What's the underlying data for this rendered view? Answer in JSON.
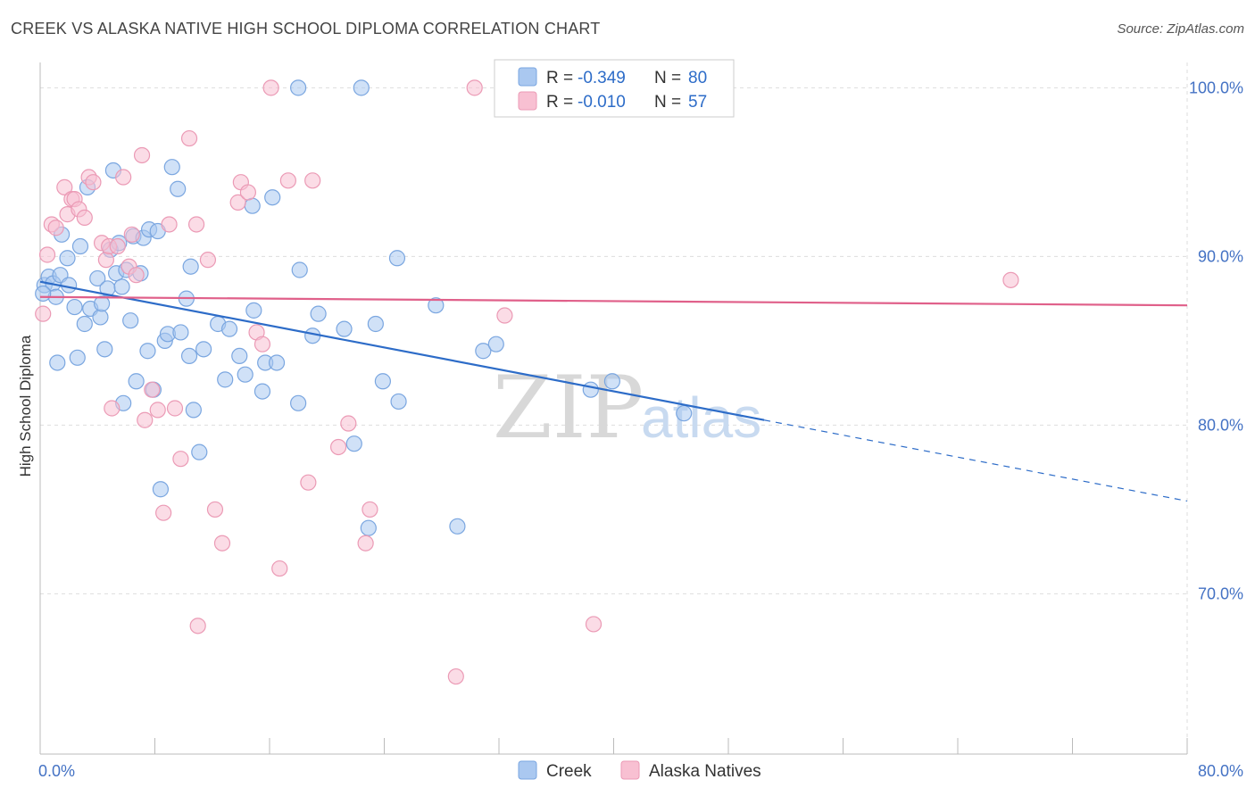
{
  "header": {
    "title": "CREEK VS ALASKA NATIVE HIGH SCHOOL DIPLOMA CORRELATION CHART",
    "source": "Source: ZipAtlas.com"
  },
  "watermark": {
    "zip": "ZIP",
    "atlas": "atlas"
  },
  "stats": {
    "r_label": "R =",
    "n_label": "N =",
    "rows": [
      {
        "series": "Creek",
        "r": "-0.349",
        "n": "80"
      },
      {
        "series": "Alaska Natives",
        "r": "-0.010",
        "n": "57"
      }
    ]
  },
  "colors": {
    "creek_fill": "#aac8f0",
    "creek_stroke": "#7aa6e0",
    "creek_line": "#2d6cc8",
    "alaska_fill": "#f8c0d2",
    "alaska_stroke": "#eb9ab5",
    "alaska_line": "#e0608a",
    "grid": "#dddddd"
  },
  "chart_data": {
    "type": "scatter",
    "title": "CREEK VS ALASKA NATIVE HIGH SCHOOL DIPLOMA CORRELATION CHART",
    "xlabel": "",
    "ylabel": "High School Diploma",
    "xlim": [
      0,
      80
    ],
    "ylim": [
      60.5,
      101.5
    ],
    "x_tick_labels": [
      {
        "value": 0,
        "label": "0.0%"
      },
      {
        "value": 80,
        "label": "80.0%"
      }
    ],
    "y_tick_labels": [
      {
        "value": 100,
        "label": "100.0%"
      },
      {
        "value": 90,
        "label": "90.0%"
      },
      {
        "value": 80,
        "label": "80.0%"
      },
      {
        "value": 70,
        "label": "70.0%"
      }
    ],
    "legend": [
      "Creek",
      "Alaska Natives"
    ],
    "series": [
      {
        "name": "Creek",
        "trend": {
          "start": [
            0,
            88.5
          ],
          "end": [
            50.5,
            80.3
          ],
          "dashed_end": [
            80,
            75.5
          ]
        },
        "points": [
          [
            0.3,
            88.3
          ],
          [
            0.6,
            88.8
          ],
          [
            0.9,
            88.4
          ],
          [
            1.1,
            87.6
          ],
          [
            1.4,
            88.9
          ],
          [
            1.5,
            91.3
          ],
          [
            1.9,
            89.9
          ],
          [
            2.0,
            88.3
          ],
          [
            2.4,
            87.0
          ],
          [
            2.6,
            84.0
          ],
          [
            2.8,
            90.6
          ],
          [
            3.1,
            86.0
          ],
          [
            3.3,
            94.1
          ],
          [
            3.5,
            86.9
          ],
          [
            4.0,
            88.7
          ],
          [
            4.2,
            86.4
          ],
          [
            4.3,
            87.2
          ],
          [
            4.5,
            84.5
          ],
          [
            4.7,
            88.1
          ],
          [
            4.9,
            90.4
          ],
          [
            5.1,
            95.1
          ],
          [
            5.3,
            89.0
          ],
          [
            5.5,
            90.8
          ],
          [
            5.7,
            88.2
          ],
          [
            5.8,
            81.3
          ],
          [
            6.0,
            89.2
          ],
          [
            6.3,
            86.2
          ],
          [
            6.5,
            91.2
          ],
          [
            6.7,
            82.6
          ],
          [
            7.0,
            89.0
          ],
          [
            7.2,
            91.1
          ],
          [
            7.5,
            84.4
          ],
          [
            7.6,
            91.6
          ],
          [
            7.9,
            82.1
          ],
          [
            8.2,
            91.5
          ],
          [
            8.4,
            76.2
          ],
          [
            8.7,
            85.0
          ],
          [
            8.9,
            85.4
          ],
          [
            9.2,
            95.3
          ],
          [
            9.6,
            94.0
          ],
          [
            9.8,
            85.5
          ],
          [
            10.2,
            87.5
          ],
          [
            10.4,
            84.1
          ],
          [
            10.5,
            89.4
          ],
          [
            10.7,
            80.9
          ],
          [
            11.1,
            78.4
          ],
          [
            11.4,
            84.5
          ],
          [
            12.4,
            86.0
          ],
          [
            12.9,
            82.7
          ],
          [
            13.2,
            85.7
          ],
          [
            13.9,
            84.1
          ],
          [
            14.3,
            83.0
          ],
          [
            14.8,
            93.0
          ],
          [
            14.9,
            86.8
          ],
          [
            15.5,
            82.0
          ],
          [
            15.7,
            83.7
          ],
          [
            16.2,
            93.5
          ],
          [
            16.5,
            83.7
          ],
          [
            18.0,
            81.3
          ],
          [
            18.1,
            89.2
          ],
          [
            18.0,
            100.0
          ],
          [
            19.4,
            86.6
          ],
          [
            19.0,
            85.3
          ],
          [
            21.2,
            85.7
          ],
          [
            21.9,
            78.9
          ],
          [
            22.4,
            100.0
          ],
          [
            22.9,
            73.9
          ],
          [
            23.4,
            86.0
          ],
          [
            23.9,
            82.6
          ],
          [
            24.9,
            89.9
          ],
          [
            25.0,
            81.4
          ],
          [
            27.6,
            87.1
          ],
          [
            29.1,
            74.0
          ],
          [
            30.9,
            84.4
          ],
          [
            31.8,
            84.8
          ],
          [
            38.4,
            82.1
          ],
          [
            39.9,
            82.6
          ],
          [
            44.9,
            80.7
          ],
          [
            0.2,
            87.8
          ],
          [
            1.2,
            83.7
          ]
        ]
      },
      {
        "name": "Alaska Natives",
        "trend": {
          "start": [
            0,
            87.6
          ],
          "end": [
            80,
            87.1
          ]
        },
        "points": [
          [
            0.2,
            86.6
          ],
          [
            0.5,
            90.1
          ],
          [
            0.8,
            91.9
          ],
          [
            1.1,
            91.7
          ],
          [
            1.7,
            94.1
          ],
          [
            1.9,
            92.5
          ],
          [
            2.2,
            93.4
          ],
          [
            2.4,
            93.4
          ],
          [
            2.7,
            92.8
          ],
          [
            3.1,
            92.3
          ],
          [
            3.4,
            94.7
          ],
          [
            3.7,
            94.4
          ],
          [
            4.3,
            90.8
          ],
          [
            4.6,
            89.8
          ],
          [
            4.8,
            90.6
          ],
          [
            5.0,
            81.0
          ],
          [
            5.4,
            90.6
          ],
          [
            5.8,
            94.7
          ],
          [
            6.2,
            89.4
          ],
          [
            6.4,
            91.3
          ],
          [
            6.7,
            88.9
          ],
          [
            7.1,
            96.0
          ],
          [
            7.3,
            80.3
          ],
          [
            7.8,
            82.1
          ],
          [
            8.2,
            80.9
          ],
          [
            8.6,
            74.8
          ],
          [
            9.0,
            91.9
          ],
          [
            9.4,
            81.0
          ],
          [
            9.8,
            78.0
          ],
          [
            10.4,
            97.0
          ],
          [
            10.9,
            91.9
          ],
          [
            11.0,
            68.1
          ],
          [
            11.7,
            89.8
          ],
          [
            12.2,
            75.0
          ],
          [
            12.7,
            73.0
          ],
          [
            13.8,
            93.2
          ],
          [
            14.0,
            94.4
          ],
          [
            14.5,
            93.8
          ],
          [
            15.1,
            85.5
          ],
          [
            15.5,
            84.8
          ],
          [
            16.1,
            100.0
          ],
          [
            16.7,
            71.5
          ],
          [
            17.3,
            94.5
          ],
          [
            18.7,
            76.6
          ],
          [
            19.0,
            94.5
          ],
          [
            20.8,
            78.7
          ],
          [
            21.5,
            80.1
          ],
          [
            22.7,
            73.0
          ],
          [
            23.0,
            75.0
          ],
          [
            29.0,
            65.1
          ],
          [
            30.3,
            100.0
          ],
          [
            32.4,
            86.5
          ],
          [
            38.6,
            68.2
          ],
          [
            40.7,
            100.0
          ],
          [
            42.8,
            100.0
          ],
          [
            44.8,
            100.0
          ],
          [
            67.7,
            88.6
          ]
        ]
      }
    ]
  }
}
